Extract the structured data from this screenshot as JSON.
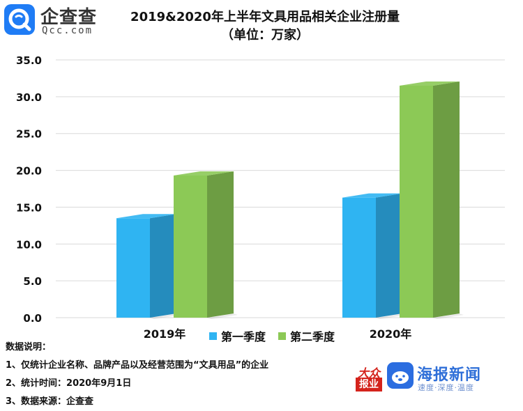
{
  "logo": {
    "name_cn": "企查查",
    "name_en": "Qcc.com",
    "brand_color": "#1f7cf5"
  },
  "chart_data": {
    "type": "bar",
    "title": "2019&2020年上半年文具用品相关企业注册量",
    "subtitle": "（单位：万家）",
    "categories": [
      "2019年",
      "2020年"
    ],
    "series": [
      {
        "name": "第一季度",
        "values": [
          13.5,
          16.3
        ],
        "color": "#2fb4f2"
      },
      {
        "name": "第二季度",
        "values": [
          19.3,
          31.5
        ],
        "color": "#8cc956"
      }
    ],
    "ylim": [
      0,
      35
    ],
    "yticks": [
      "0.0",
      "5.0",
      "10.0",
      "15.0",
      "20.0",
      "25.0",
      "30.0",
      "35.0"
    ],
    "grid": true,
    "legend_position": "bottom"
  },
  "notes": {
    "heading": "数据说明：",
    "items": [
      "1、仅统计企业名称、品牌产品以及经营范围为“文具用品”的企业",
      "2、统计时间：2020年9月1日",
      "3、数据来源：企查查"
    ]
  },
  "footer": {
    "dazhong_top": "大众",
    "dazhong_bottom": "报业",
    "haibao_name": "海报新闻",
    "haibao_slogan": "速度·深度·温度",
    "haibao_color": "#2f6fd8"
  }
}
